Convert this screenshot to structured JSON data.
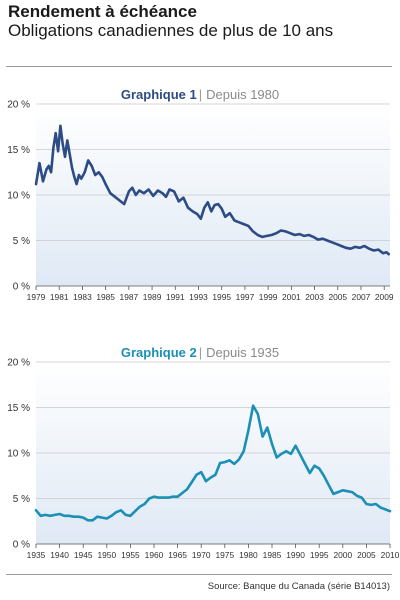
{
  "header": {
    "title": "Rendement à échéance",
    "subtitle": "Obligations canadiennes de plus de 10 ans"
  },
  "source": "Source: Banque du Canada (série B14013)",
  "colors": {
    "chart1_line": "#2d4b85",
    "chart1_title": "#2d4b85",
    "chart2_line": "#1b8fb5",
    "chart2_title": "#1b8fb5",
    "subtitle_gray": "#8a8a8a",
    "grid": "#c8c8c8",
    "fill_top": "#dfe9f5"
  },
  "chart_data": [
    {
      "type": "line",
      "title": "Graphique 1",
      "subtitle": "Depuis 1980",
      "xlim": [
        1979,
        2009.5
      ],
      "ylim": [
        0,
        20
      ],
      "x_ticks": [
        1979,
        1981,
        1983,
        1985,
        1987,
        1989,
        1991,
        1993,
        1995,
        1997,
        1999,
        2001,
        2003,
        2005,
        2007,
        2009
      ],
      "y_ticks": [
        0,
        5,
        10,
        15,
        20
      ],
      "y_tick_labels": [
        "0 %",
        "5 %",
        "10 %",
        "15 %",
        "20 %"
      ],
      "grid": true,
      "x": [
        1979.0,
        1979.3,
        1979.6,
        1979.9,
        1980.1,
        1980.3,
        1980.5,
        1980.7,
        1980.9,
        1981.1,
        1981.3,
        1981.5,
        1981.7,
        1981.9,
        1982.1,
        1982.3,
        1982.5,
        1982.7,
        1982.9,
        1983.2,
        1983.5,
        1983.8,
        1984.1,
        1984.4,
        1984.7,
        1985.0,
        1985.4,
        1985.8,
        1986.2,
        1986.6,
        1987.0,
        1987.3,
        1987.6,
        1987.9,
        1988.3,
        1988.7,
        1989.1,
        1989.5,
        1989.9,
        1990.2,
        1990.5,
        1990.9,
        1991.3,
        1991.7,
        1992.1,
        1992.5,
        1992.9,
        1993.2,
        1993.5,
        1993.8,
        1994.1,
        1994.4,
        1994.7,
        1995.0,
        1995.3,
        1995.7,
        1996.1,
        1996.5,
        1996.9,
        1997.3,
        1997.7,
        1998.1,
        1998.5,
        1998.9,
        1999.3,
        1999.7,
        2000.1,
        2000.5,
        2000.9,
        2001.3,
        2001.7,
        2002.1,
        2002.5,
        2002.9,
        2003.3,
        2003.7,
        2004.1,
        2004.5,
        2004.9,
        2005.3,
        2005.7,
        2006.1,
        2006.5,
        2006.9,
        2007.3,
        2007.7,
        2008.1,
        2008.5,
        2008.9,
        2009.2,
        2009.4
      ],
      "series": [
        {
          "values": [
            11.2,
            13.5,
            11.5,
            12.8,
            13.2,
            12.5,
            15.2,
            16.8,
            14.8,
            17.6,
            15.6,
            14.2,
            16.0,
            14.5,
            13.0,
            12.0,
            11.2,
            12.2,
            11.8,
            12.5,
            13.8,
            13.2,
            12.2,
            12.5,
            12.0,
            11.2,
            10.2,
            9.8,
            9.4,
            9.0,
            10.4,
            10.8,
            10.0,
            10.5,
            10.2,
            10.6,
            9.9,
            10.5,
            10.2,
            9.8,
            10.6,
            10.4,
            9.3,
            9.7,
            8.6,
            8.2,
            7.9,
            7.4,
            8.6,
            9.2,
            8.2,
            8.9,
            9.0,
            8.5,
            7.6,
            8.0,
            7.2,
            7.0,
            6.8,
            6.6,
            6.0,
            5.6,
            5.4,
            5.5,
            5.6,
            5.8,
            6.1,
            6.0,
            5.8,
            5.6,
            5.7,
            5.5,
            5.6,
            5.4,
            5.1,
            5.2,
            5.0,
            4.8,
            4.6,
            4.4,
            4.2,
            4.1,
            4.3,
            4.2,
            4.4,
            4.1,
            3.9,
            4.0,
            3.6,
            3.7,
            3.5
          ]
        }
      ]
    },
    {
      "type": "line",
      "title": "Graphique 2",
      "subtitle": "Depuis 1935",
      "xlim": [
        1935,
        2010
      ],
      "ylim": [
        0,
        20
      ],
      "x_ticks": [
        1935,
        1940,
        1945,
        1950,
        1955,
        1960,
        1965,
        1970,
        1975,
        1980,
        1985,
        1990,
        1995,
        2000,
        2005,
        2010
      ],
      "y_ticks": [
        0,
        5,
        10,
        15,
        20
      ],
      "y_tick_labels": [
        "0 %",
        "5 %",
        "10 %",
        "15 %",
        "20 %"
      ],
      "grid": true,
      "x": [
        1935,
        1936,
        1937,
        1938,
        1939,
        1940,
        1941,
        1942,
        1943,
        1944,
        1945,
        1946,
        1947,
        1948,
        1949,
        1950,
        1951,
        1952,
        1953,
        1954,
        1955,
        1956,
        1957,
        1958,
        1959,
        1960,
        1961,
        1962,
        1963,
        1964,
        1965,
        1966,
        1967,
        1968,
        1969,
        1970,
        1971,
        1972,
        1973,
        1974,
        1975,
        1976,
        1977,
        1978,
        1979,
        1980,
        1981,
        1982,
        1983,
        1984,
        1985,
        1986,
        1987,
        1988,
        1989,
        1990,
        1991,
        1992,
        1993,
        1994,
        1995,
        1996,
        1997,
        1998,
        1999,
        2000,
        2001,
        2002,
        2003,
        2004,
        2005,
        2006,
        2007,
        2008,
        2009,
        2010
      ],
      "series": [
        {
          "values": [
            3.7,
            3.1,
            3.2,
            3.1,
            3.2,
            3.3,
            3.1,
            3.1,
            3.0,
            3.0,
            2.9,
            2.6,
            2.6,
            3.0,
            2.9,
            2.8,
            3.1,
            3.5,
            3.7,
            3.2,
            3.1,
            3.6,
            4.1,
            4.4,
            5.0,
            5.2,
            5.1,
            5.1,
            5.1,
            5.2,
            5.2,
            5.6,
            6.0,
            6.8,
            7.6,
            7.9,
            6.9,
            7.3,
            7.6,
            8.9,
            9.0,
            9.2,
            8.8,
            9.3,
            10.2,
            12.5,
            15.2,
            14.3,
            11.8,
            12.8,
            11.0,
            9.5,
            9.9,
            10.2,
            9.9,
            10.8,
            9.8,
            8.8,
            7.8,
            8.6,
            8.3,
            7.5,
            6.5,
            5.5,
            5.7,
            5.9,
            5.8,
            5.7,
            5.3,
            5.1,
            4.4,
            4.3,
            4.4,
            4.0,
            3.8,
            3.6
          ]
        }
      ]
    }
  ]
}
